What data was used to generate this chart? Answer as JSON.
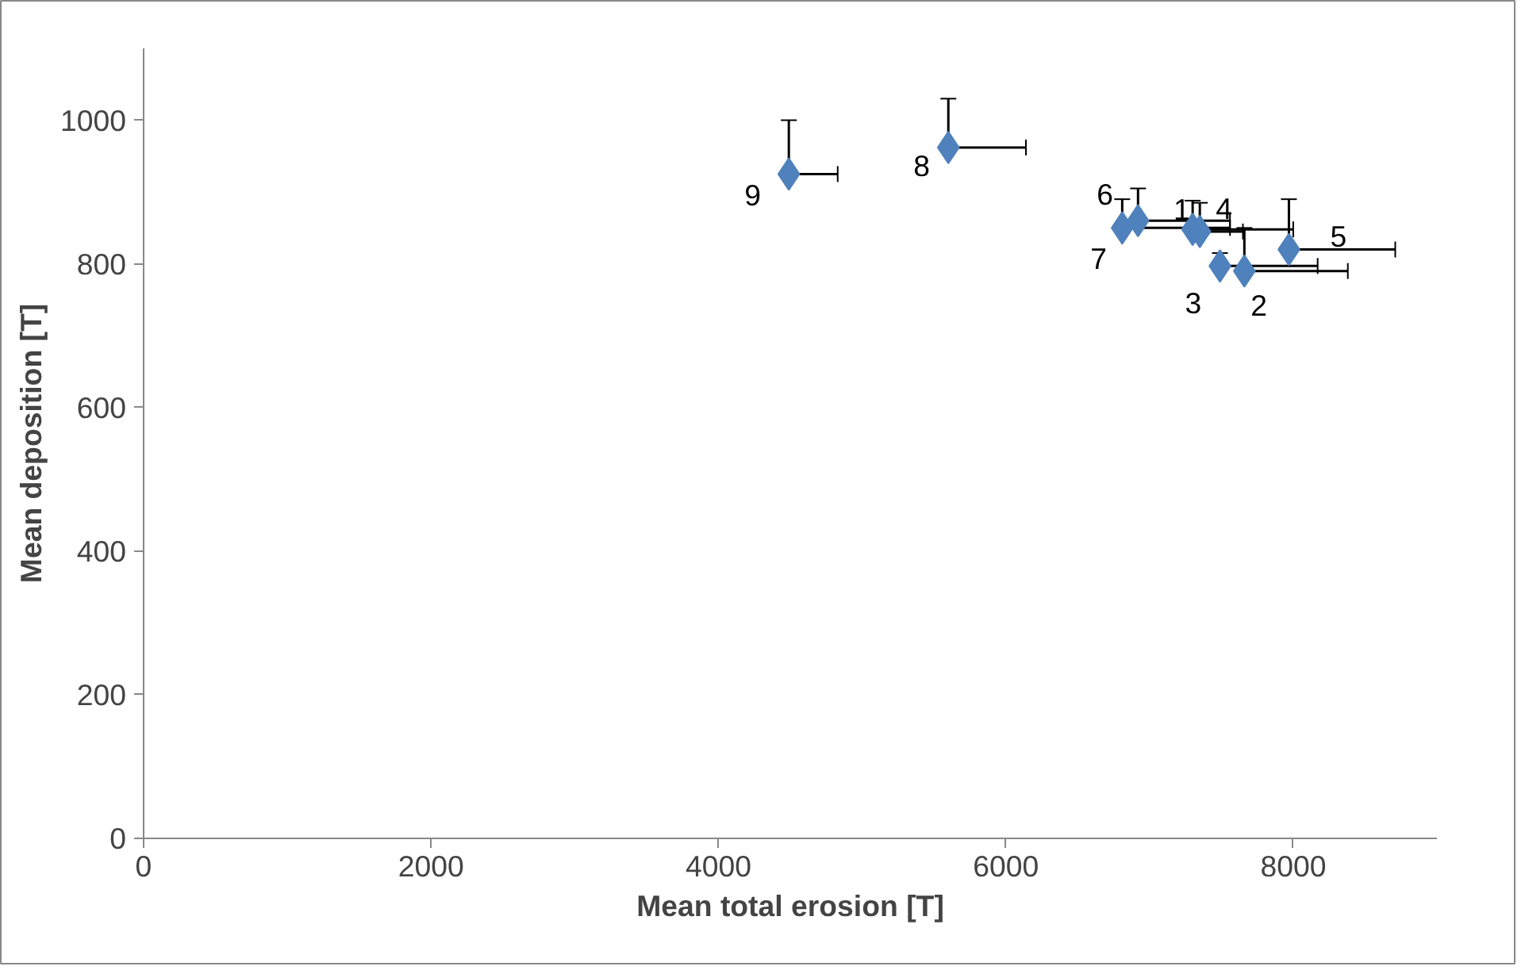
{
  "chart_data": {
    "type": "scatter",
    "xlabel": "Mean total erosion [T]",
    "ylabel": "Mean deposition [T]",
    "x": [
      7300,
      7660,
      7490,
      7350,
      7970,
      6920,
      6810,
      5600,
      4490
    ],
    "series": [
      {
        "color": "#4f81bd",
        "values": [
          848,
          790,
          797,
          845,
          820,
          860,
          850,
          962,
          925
        ],
        "errors": [
          [
            848,
            888
          ],
          [
            790,
            850
          ],
          [
            797,
            815
          ],
          [
            845,
            885
          ],
          [
            820,
            890
          ],
          [
            860,
            905
          ],
          [
            850,
            890
          ],
          [
            962,
            1030
          ],
          [
            925,
            1000
          ]
        ],
        "xerrors": [
          [
            7300,
            8000
          ],
          [
            7660,
            8380
          ],
          [
            7490,
            8170
          ],
          [
            7350,
            7650
          ],
          [
            7970,
            8710
          ],
          [
            6920,
            7560
          ],
          [
            6810,
            7560
          ],
          [
            5600,
            6140
          ],
          [
            4490,
            4830
          ]
        ]
      }
    ],
    "annotations": [
      {
        "text": "1",
        "x": 7300,
        "y": 848
      },
      {
        "text": "2",
        "x": 7660,
        "y": 790
      },
      {
        "text": "3",
        "x": 7490,
        "y": 797
      },
      {
        "text": "4",
        "x": 7350,
        "y": 845
      },
      {
        "text": "5",
        "x": 7970,
        "y": 820
      },
      {
        "text": "6",
        "x": 6920,
        "y": 860
      },
      {
        "text": "7",
        "x": 6810,
        "y": 850
      },
      {
        "text": "8",
        "x": 5600,
        "y": 962
      },
      {
        "text": "9",
        "x": 4490,
        "y": 925
      }
    ],
    "xlim": [
      0,
      9000
    ],
    "xticks": [
      0,
      2000,
      4000,
      6000,
      8000
    ],
    "ylim": [
      0,
      1100
    ],
    "yticks": [
      0,
      200,
      400,
      600,
      800,
      1000
    ],
    "grid": false,
    "marker": "diamond"
  }
}
